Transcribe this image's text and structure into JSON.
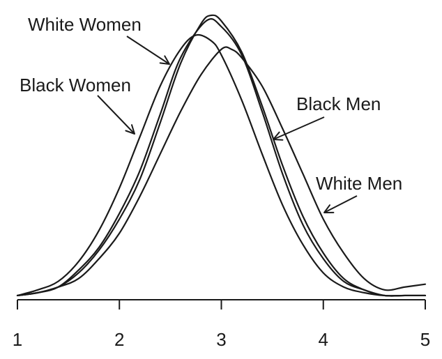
{
  "chart_data": {
    "type": "line",
    "title": "",
    "xlabel": "",
    "ylabel": "",
    "xlim": [
      1,
      5
    ],
    "x_ticks": [
      1,
      2,
      3,
      4,
      5
    ],
    "x_tick_labels": [
      "1",
      "2",
      "3",
      "4",
      "5"
    ],
    "y_axis_shown": false,
    "ylim": [
      0,
      1.0
    ],
    "grid": false,
    "legend": "none (curves labeled by annotations with arrows)",
    "series": [
      {
        "name": "White Women",
        "x": [
          1.0,
          1.2,
          1.4,
          1.6,
          1.8,
          2.0,
          2.2,
          2.4,
          2.6,
          2.8,
          2.9,
          3.0,
          3.2,
          3.4,
          3.6,
          3.8,
          4.0,
          4.2,
          4.4,
          4.6,
          4.8,
          5.0
        ],
        "y": [
          0.01,
          0.02,
          0.04,
          0.09,
          0.17,
          0.28,
          0.42,
          0.62,
          0.83,
          0.97,
          1.0,
          0.98,
          0.87,
          0.68,
          0.47,
          0.29,
          0.16,
          0.07,
          0.03,
          0.01,
          0.01,
          0.01
        ]
      },
      {
        "name": "Black Women",
        "x": [
          1.0,
          1.2,
          1.4,
          1.6,
          1.8,
          2.0,
          2.2,
          2.4,
          2.6,
          2.75,
          2.9,
          3.0,
          3.2,
          3.4,
          3.6,
          3.8,
          4.0,
          4.2,
          4.4,
          4.6,
          4.8,
          5.0
        ],
        "y": [
          0.01,
          0.03,
          0.06,
          0.13,
          0.24,
          0.39,
          0.57,
          0.75,
          0.88,
          0.93,
          0.91,
          0.86,
          0.7,
          0.51,
          0.33,
          0.19,
          0.09,
          0.04,
          0.02,
          0.01,
          0.01,
          0.01
        ]
      },
      {
        "name": "Black Men",
        "x": [
          1.0,
          1.2,
          1.4,
          1.6,
          1.8,
          2.0,
          2.2,
          2.4,
          2.6,
          2.85,
          3.0,
          3.2,
          3.4,
          3.6,
          3.8,
          4.0,
          4.2,
          4.4,
          4.6,
          4.8,
          5.0
        ],
        "y": [
          0.01,
          0.02,
          0.04,
          0.1,
          0.18,
          0.3,
          0.45,
          0.65,
          0.85,
          0.98,
          0.96,
          0.86,
          0.66,
          0.44,
          0.26,
          0.14,
          0.06,
          0.03,
          0.01,
          0.01,
          0.01
        ]
      },
      {
        "name": "White Men",
        "x": [
          1.0,
          1.2,
          1.4,
          1.6,
          1.8,
          2.0,
          2.2,
          2.4,
          2.6,
          2.8,
          3.0,
          3.1,
          3.2,
          3.4,
          3.6,
          3.8,
          4.0,
          4.2,
          4.4,
          4.6,
          4.8,
          5.0
        ],
        "y": [
          0.01,
          0.02,
          0.04,
          0.07,
          0.14,
          0.23,
          0.36,
          0.51,
          0.66,
          0.79,
          0.88,
          0.88,
          0.85,
          0.75,
          0.6,
          0.44,
          0.28,
          0.16,
          0.07,
          0.03,
          0.04,
          0.05
        ]
      }
    ],
    "annotations": [
      {
        "text": "White Women",
        "series": "White Women"
      },
      {
        "text": "Black Women",
        "series": "Black Women"
      },
      {
        "text": "Black Men",
        "series": "Black Men"
      },
      {
        "text": "White Men",
        "series": "White Men"
      }
    ]
  }
}
